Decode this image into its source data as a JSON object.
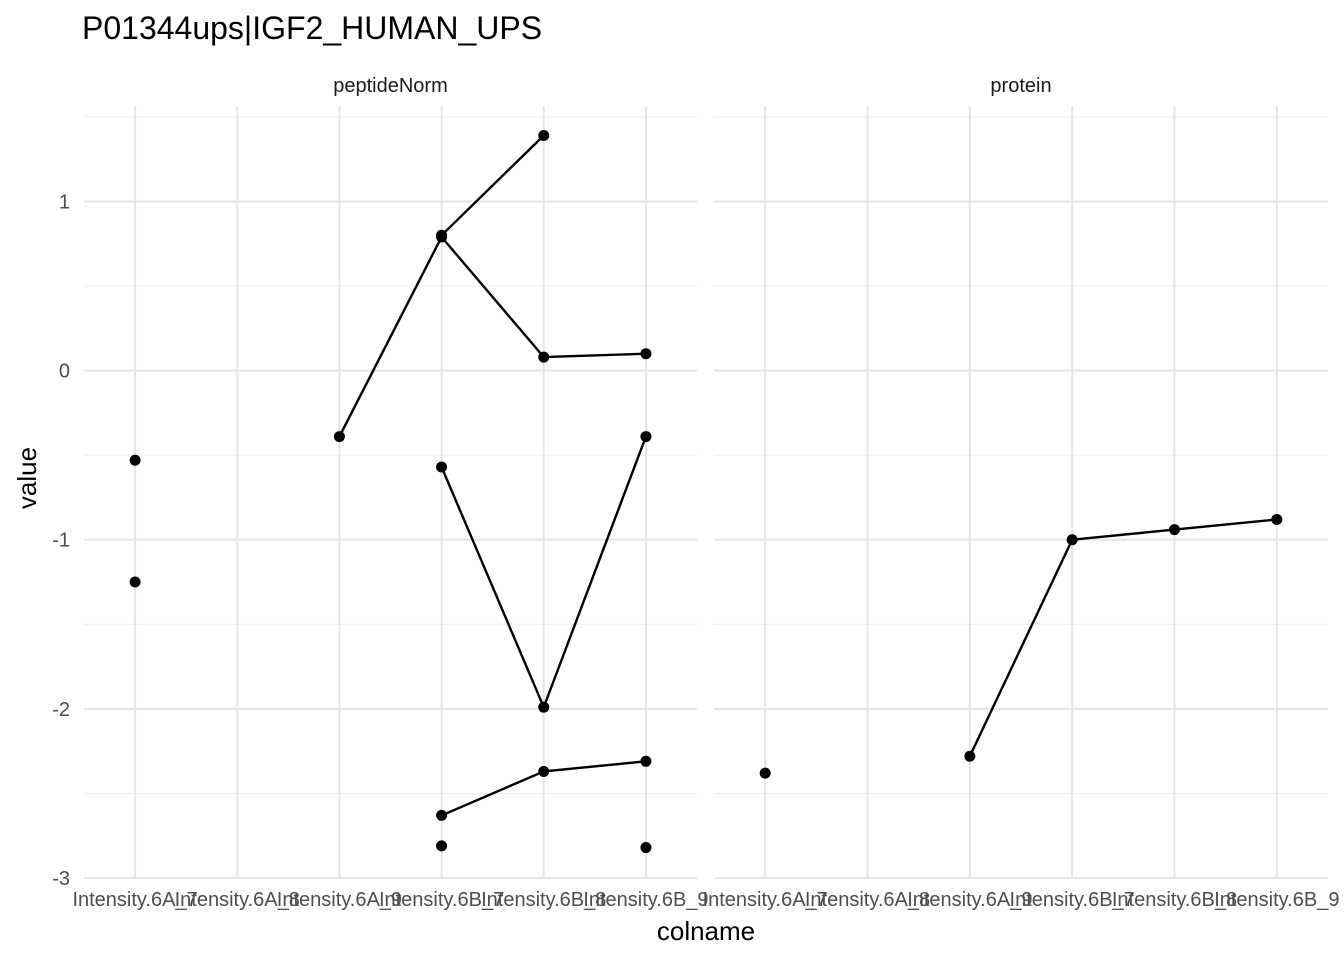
{
  "chart_data": {
    "type": "line",
    "title": "P01344ups|IGF2_HUMAN_UPS",
    "xlabel": "colname",
    "ylabel": "value",
    "categories": [
      "Intensity.6A_7",
      "Intensity.6A_8",
      "Intensity.6A_9",
      "Intensity.6B_7",
      "Intensity.6B_8",
      "Intensity.6B_9"
    ],
    "ylim": [
      -3,
      1.6
    ],
    "yticks": [
      -3,
      -2,
      -1,
      0,
      1
    ],
    "grid": true,
    "point_color": "#000000",
    "line_color": "#000000",
    "panels": [
      {
        "strip_label": "peptideNorm",
        "series": [
          {
            "values": [
              -0.53,
              null,
              null,
              null,
              null,
              null
            ]
          },
          {
            "values": [
              -1.25,
              null,
              null,
              null,
              null,
              null
            ]
          },
          {
            "values": [
              null,
              null,
              -0.39,
              0.79,
              0.08,
              0.1
            ]
          },
          {
            "values": [
              null,
              null,
              null,
              0.8,
              1.39,
              null
            ]
          },
          {
            "values": [
              null,
              null,
              null,
              -0.57,
              -1.99,
              -0.39
            ]
          },
          {
            "values": [
              null,
              null,
              null,
              -2.63,
              -2.37,
              -2.31
            ]
          },
          {
            "values": [
              null,
              null,
              null,
              -2.81,
              null,
              -2.82
            ]
          }
        ]
      },
      {
        "strip_label": "protein",
        "series": [
          {
            "values": [
              -2.38,
              null,
              -2.28,
              -1.0,
              -0.94,
              -0.88
            ]
          }
        ]
      }
    ]
  }
}
